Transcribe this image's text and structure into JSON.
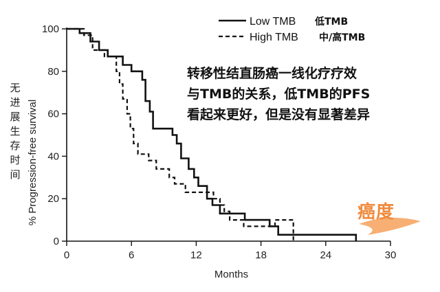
{
  "chart_data": {
    "type": "line",
    "step": true,
    "x_label": "Months",
    "y_label": "% Progression-free survival",
    "y_label_cn": [
      "无",
      "进",
      "展",
      "生",
      "存",
      "时",
      "间"
    ],
    "xlim": [
      0,
      30
    ],
    "ylim": [
      0,
      100
    ],
    "x_ticks": [
      0,
      6,
      12,
      18,
      24,
      30
    ],
    "y_ticks": [
      0,
      20,
      40,
      60,
      80,
      100
    ],
    "grid": false,
    "legend_position": "top-right",
    "series": [
      {
        "name": "Low TMB",
        "name_cn": "低TMB",
        "style": "solid",
        "color": "#111111",
        "points": [
          [
            0,
            100
          ],
          [
            1.2,
            100
          ],
          [
            1.2,
            98
          ],
          [
            2.2,
            98
          ],
          [
            2.2,
            94
          ],
          [
            3.0,
            94
          ],
          [
            3.0,
            90
          ],
          [
            3.8,
            90
          ],
          [
            3.8,
            87
          ],
          [
            5.2,
            87
          ],
          [
            5.2,
            83
          ],
          [
            6.0,
            83
          ],
          [
            6.0,
            80
          ],
          [
            7.0,
            80
          ],
          [
            7.0,
            76
          ],
          [
            7.3,
            76
          ],
          [
            7.3,
            66
          ],
          [
            7.7,
            66
          ],
          [
            7.7,
            61
          ],
          [
            8.0,
            61
          ],
          [
            8.0,
            53
          ],
          [
            9.8,
            53
          ],
          [
            9.8,
            50
          ],
          [
            10.2,
            50
          ],
          [
            10.2,
            46
          ],
          [
            10.6,
            46
          ],
          [
            10.6,
            39
          ],
          [
            11.3,
            39
          ],
          [
            11.3,
            34
          ],
          [
            11.8,
            34
          ],
          [
            11.8,
            30
          ],
          [
            12.2,
            30
          ],
          [
            12.2,
            26
          ],
          [
            13.0,
            26
          ],
          [
            13.0,
            20
          ],
          [
            13.5,
            20
          ],
          [
            13.5,
            17
          ],
          [
            14.2,
            17
          ],
          [
            14.2,
            13
          ],
          [
            16.5,
            13
          ],
          [
            16.5,
            10
          ],
          [
            18.8,
            10
          ],
          [
            18.8,
            7
          ],
          [
            19.6,
            7
          ],
          [
            19.6,
            3
          ],
          [
            26.8,
            3
          ],
          [
            26.8,
            0
          ]
        ]
      },
      {
        "name": "High TMB",
        "name_cn": "中/高TMB",
        "style": "dashed",
        "color": "#111111",
        "points": [
          [
            0,
            100
          ],
          [
            1.6,
            100
          ],
          [
            1.6,
            97
          ],
          [
            2.4,
            97
          ],
          [
            2.4,
            90
          ],
          [
            3.5,
            90
          ],
          [
            3.5,
            87
          ],
          [
            4.6,
            87
          ],
          [
            4.6,
            80
          ],
          [
            4.9,
            80
          ],
          [
            4.9,
            74
          ],
          [
            5.2,
            74
          ],
          [
            5.2,
            67
          ],
          [
            5.6,
            67
          ],
          [
            5.6,
            60
          ],
          [
            5.9,
            60
          ],
          [
            5.9,
            53
          ],
          [
            6.2,
            53
          ],
          [
            6.2,
            46
          ],
          [
            6.6,
            46
          ],
          [
            6.6,
            41
          ],
          [
            7.6,
            41
          ],
          [
            7.6,
            38
          ],
          [
            8.3,
            38
          ],
          [
            8.3,
            34
          ],
          [
            9.5,
            34
          ],
          [
            9.5,
            30
          ],
          [
            10.0,
            30
          ],
          [
            10.0,
            27
          ],
          [
            11.0,
            27
          ],
          [
            11.0,
            23
          ],
          [
            13.6,
            23
          ],
          [
            13.6,
            20
          ],
          [
            14.2,
            20
          ],
          [
            14.2,
            17
          ],
          [
            14.6,
            17
          ],
          [
            14.6,
            14
          ],
          [
            15.1,
            14
          ],
          [
            15.1,
            10
          ],
          [
            16.4,
            10
          ],
          [
            16.4,
            7
          ],
          [
            19.3,
            7
          ],
          [
            19.3,
            10
          ],
          [
            21.0,
            10
          ],
          [
            21.0,
            0
          ]
        ]
      }
    ]
  },
  "annotation": {
    "line1": "转移性结直肠癌一线化疗疗效",
    "line2": "与TMB的关系，低TMB的PFS",
    "line3": "看起来更好，但是没有显著差异"
  },
  "logo": {
    "text": "癌度",
    "color": "#f08a3c"
  }
}
